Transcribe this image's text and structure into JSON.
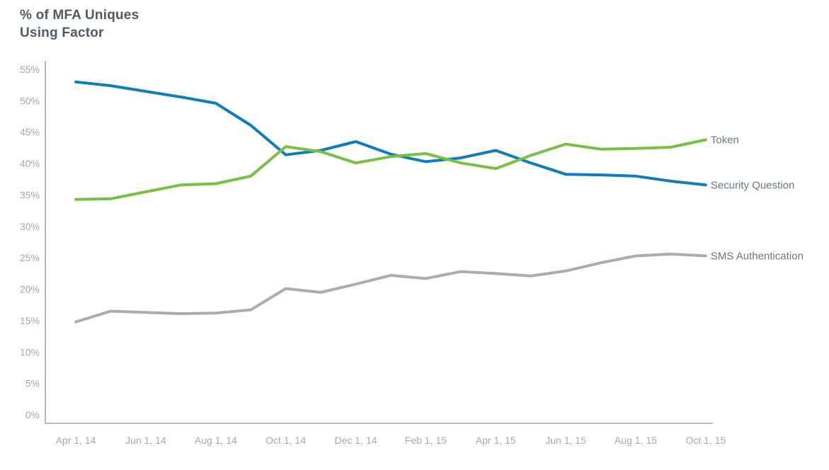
{
  "header": {
    "title_lines": [
      "% of MFA Uniques",
      "Using Factor"
    ]
  },
  "chart_data": {
    "type": "line",
    "title": "% of MFA Uniques Using Factor",
    "xlabel": "",
    "ylabel": "% of MFA Uniques Using Factor",
    "ylim": [
      0,
      55
    ],
    "y_tick_step": 5,
    "y_tick_labels": [
      "0%",
      "5%",
      "10%",
      "15%",
      "20%",
      "25%",
      "30%",
      "35%",
      "40%",
      "45%",
      "50%",
      "55%"
    ],
    "x": [
      "Apr 1, 14",
      "May 1, 14",
      "Jun 1, 14",
      "Jul 1, 14",
      "Aug 1, 14",
      "Sep 1, 14",
      "Oct 1, 14",
      "Nov 1, 14",
      "Dec 1, 14",
      "Jan 1, 15",
      "Feb 1, 15",
      "Mar 1, 15",
      "Apr 1, 15",
      "May 1, 15",
      "Jun 1, 15",
      "Jul 1, 15",
      "Aug 1, 15",
      "Sep 1, 15",
      "Oct 1, 15"
    ],
    "x_tick_labels": [
      "Apr 1, 14",
      "Jun 1, 14",
      "Aug 1, 14",
      "Oct 1, 14",
      "Dec 1, 14",
      "Feb 1, 15",
      "Apr 1, 15",
      "Jun 1, 15",
      "Aug 1, 15",
      "Oct 1, 15"
    ],
    "x_tick_every": 2,
    "grid": false,
    "legend_position": "inline-right-of-line-ends",
    "series": [
      {
        "name": "SMS Authentication",
        "color": "#a9adb2",
        "values": [
          14.8,
          16.5,
          16.3,
          16.1,
          16.2,
          16.7,
          20.1,
          19.5,
          20.8,
          22.2,
          21.7,
          22.8,
          22.5,
          22.1,
          22.9,
          24.2,
          25.3,
          25.6,
          25.3
        ]
      },
      {
        "name": "Security Question",
        "color": "#107cbe",
        "values": [
          53.0,
          52.4,
          51.5,
          50.6,
          49.6,
          46.1,
          41.4,
          42.1,
          43.5,
          41.5,
          40.3,
          40.9,
          42.1,
          40.1,
          38.3,
          38.2,
          38.0,
          37.2,
          36.6
        ]
      },
      {
        "name": "Token",
        "color": "#77c044",
        "values": [
          34.3,
          34.4,
          35.5,
          36.6,
          36.8,
          38.0,
          42.7,
          41.9,
          40.1,
          41.1,
          41.6,
          40.1,
          39.2,
          41.3,
          43.1,
          42.3,
          42.4,
          42.6,
          43.8
        ]
      }
    ]
  },
  "colors": {
    "background": "#ffffff",
    "title_text": "#515a64",
    "tick_text": "#a4a9ae",
    "series_label_text": "#6c7580",
    "axis_line": "#b6b9bd"
  }
}
